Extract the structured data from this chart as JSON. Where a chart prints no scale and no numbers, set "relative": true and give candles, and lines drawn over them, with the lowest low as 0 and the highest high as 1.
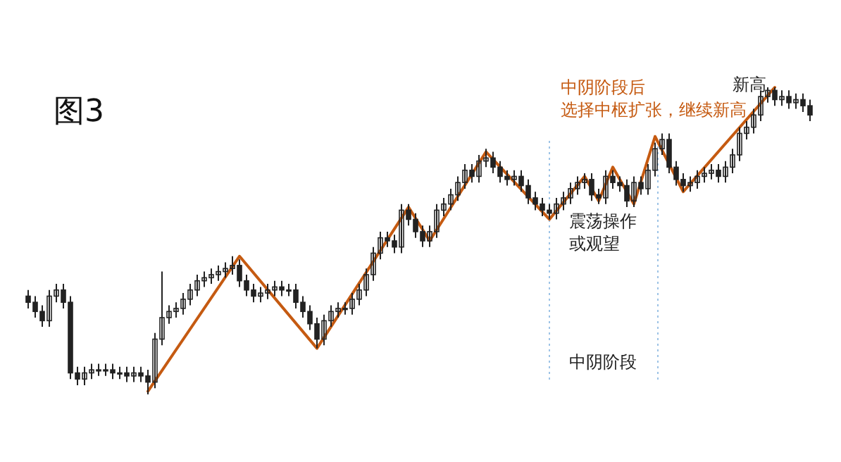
{
  "chart_data": {
    "type": "candlestick",
    "title": "图3",
    "relative": true,
    "categories": [
      null,
      null,
      null,
      null,
      null,
      null,
      null,
      null,
      null,
      null,
      null,
      null,
      null,
      null,
      null,
      null,
      null,
      null,
      null,
      null,
      null,
      null,
      null,
      null,
      null,
      null,
      null,
      null,
      null,
      null,
      null,
      null,
      null,
      null,
      null,
      null,
      null,
      null,
      null,
      null,
      null,
      null,
      null,
      null,
      null,
      null,
      null,
      null,
      null,
      null,
      null,
      null,
      null,
      null,
      null,
      null,
      null,
      null,
      null,
      null,
      null,
      null,
      null,
      null,
      null,
      null,
      null,
      null,
      null,
      null,
      null,
      null,
      null,
      null,
      null,
      null,
      null,
      null,
      null,
      null,
      null,
      null,
      null,
      null,
      null,
      null,
      null,
      null,
      null,
      null,
      null,
      null,
      null,
      null,
      null,
      null,
      null,
      null,
      null,
      null,
      null,
      null,
      null,
      null,
      null,
      null,
      null,
      null,
      null,
      null,
      null,
      null
    ],
    "ohlc": [
      [
        0.32,
        0.34,
        0.28,
        0.3
      ],
      [
        0.3,
        0.32,
        0.25,
        0.27
      ],
      [
        0.27,
        0.29,
        0.22,
        0.24
      ],
      [
        0.24,
        0.34,
        0.22,
        0.32
      ],
      [
        0.32,
        0.36,
        0.3,
        0.34
      ],
      [
        0.34,
        0.36,
        0.28,
        0.3
      ],
      [
        0.3,
        0.32,
        0.05,
        0.07
      ],
      [
        0.07,
        0.09,
        0.03,
        0.05
      ],
      [
        0.05,
        0.09,
        0.03,
        0.07
      ],
      [
        0.07,
        0.1,
        0.05,
        0.08
      ],
      [
        0.08,
        0.1,
        0.06,
        0.08
      ],
      [
        0.08,
        0.1,
        0.06,
        0.08
      ],
      [
        0.08,
        0.1,
        0.05,
        0.07
      ],
      [
        0.07,
        0.09,
        0.05,
        0.07
      ],
      [
        0.07,
        0.09,
        0.04,
        0.06
      ],
      [
        0.06,
        0.09,
        0.04,
        0.07
      ],
      [
        0.07,
        0.09,
        0.04,
        0.06
      ],
      [
        0.06,
        0.08,
        0.0,
        0.04
      ],
      [
        0.04,
        0.2,
        0.02,
        0.18
      ],
      [
        0.18,
        0.4,
        0.16,
        0.25
      ],
      [
        0.25,
        0.29,
        0.23,
        0.27
      ],
      [
        0.27,
        0.3,
        0.25,
        0.28
      ],
      [
        0.28,
        0.33,
        0.26,
        0.31
      ],
      [
        0.31,
        0.36,
        0.29,
        0.34
      ],
      [
        0.34,
        0.39,
        0.32,
        0.37
      ],
      [
        0.37,
        0.4,
        0.35,
        0.38
      ],
      [
        0.38,
        0.41,
        0.36,
        0.39
      ],
      [
        0.39,
        0.42,
        0.37,
        0.4
      ],
      [
        0.4,
        0.43,
        0.38,
        0.41
      ],
      [
        0.41,
        0.45,
        0.39,
        0.42
      ],
      [
        0.42,
        0.44,
        0.35,
        0.37
      ],
      [
        0.37,
        0.39,
        0.32,
        0.34
      ],
      [
        0.34,
        0.36,
        0.3,
        0.32
      ],
      [
        0.32,
        0.35,
        0.3,
        0.33
      ],
      [
        0.33,
        0.36,
        0.31,
        0.34
      ],
      [
        0.34,
        0.37,
        0.32,
        0.35
      ],
      [
        0.35,
        0.37,
        0.32,
        0.34
      ],
      [
        0.34,
        0.36,
        0.32,
        0.34
      ],
      [
        0.34,
        0.36,
        0.28,
        0.3
      ],
      [
        0.3,
        0.32,
        0.25,
        0.27
      ],
      [
        0.27,
        0.29,
        0.21,
        0.23
      ],
      [
        0.23,
        0.25,
        0.15,
        0.18
      ],
      [
        0.18,
        0.26,
        0.16,
        0.24
      ],
      [
        0.24,
        0.29,
        0.22,
        0.27
      ],
      [
        0.27,
        0.3,
        0.25,
        0.28
      ],
      [
        0.28,
        0.3,
        0.26,
        0.28
      ],
      [
        0.28,
        0.33,
        0.26,
        0.31
      ],
      [
        0.31,
        0.36,
        0.29,
        0.34
      ],
      [
        0.34,
        0.41,
        0.32,
        0.39
      ],
      [
        0.39,
        0.48,
        0.37,
        0.46
      ],
      [
        0.46,
        0.53,
        0.44,
        0.51
      ],
      [
        0.51,
        0.53,
        0.48,
        0.5
      ],
      [
        0.5,
        0.52,
        0.46,
        0.48
      ],
      [
        0.48,
        0.62,
        0.46,
        0.6
      ],
      [
        0.6,
        0.62,
        0.55,
        0.57
      ],
      [
        0.57,
        0.59,
        0.51,
        0.53
      ],
      [
        0.53,
        0.55,
        0.48,
        0.5
      ],
      [
        0.5,
        0.55,
        0.48,
        0.53
      ],
      [
        0.53,
        0.62,
        0.51,
        0.6
      ],
      [
        0.6,
        0.64,
        0.58,
        0.62
      ],
      [
        0.62,
        0.67,
        0.6,
        0.65
      ],
      [
        0.65,
        0.71,
        0.63,
        0.69
      ],
      [
        0.69,
        0.75,
        0.67,
        0.73
      ],
      [
        0.73,
        0.75,
        0.69,
        0.71
      ],
      [
        0.71,
        0.78,
        0.69,
        0.76
      ],
      [
        0.76,
        0.8,
        0.74,
        0.77
      ],
      [
        0.77,
        0.79,
        0.72,
        0.74
      ],
      [
        0.74,
        0.76,
        0.69,
        0.71
      ],
      [
        0.71,
        0.73,
        0.68,
        0.7
      ],
      [
        0.7,
        0.73,
        0.68,
        0.71
      ],
      [
        0.71,
        0.73,
        0.66,
        0.68
      ],
      [
        0.68,
        0.7,
        0.62,
        0.64
      ],
      [
        0.64,
        0.66,
        0.6,
        0.62
      ],
      [
        0.62,
        0.64,
        0.58,
        0.6
      ],
      [
        0.6,
        0.62,
        0.57,
        0.59
      ],
      [
        0.59,
        0.64,
        0.57,
        0.62
      ],
      [
        0.62,
        0.66,
        0.6,
        0.64
      ],
      [
        0.64,
        0.69,
        0.62,
        0.67
      ],
      [
        0.67,
        0.71,
        0.65,
        0.69
      ],
      [
        0.69,
        0.72,
        0.67,
        0.7
      ],
      [
        0.7,
        0.72,
        0.63,
        0.65
      ],
      [
        0.65,
        0.67,
        0.62,
        0.64
      ],
      [
        0.64,
        0.73,
        0.62,
        0.71
      ],
      [
        0.71,
        0.73,
        0.67,
        0.69
      ],
      [
        0.69,
        0.71,
        0.66,
        0.68
      ],
      [
        0.68,
        0.7,
        0.61,
        0.63
      ],
      [
        0.63,
        0.71,
        0.61,
        0.69
      ],
      [
        0.69,
        0.71,
        0.65,
        0.67
      ],
      [
        0.67,
        0.75,
        0.65,
        0.73
      ],
      [
        0.73,
        0.82,
        0.71,
        0.8
      ],
      [
        0.8,
        0.85,
        0.78,
        0.83
      ],
      [
        0.83,
        0.85,
        0.72,
        0.74
      ],
      [
        0.74,
        0.76,
        0.68,
        0.7
      ],
      [
        0.7,
        0.72,
        0.66,
        0.68
      ],
      [
        0.68,
        0.71,
        0.66,
        0.69
      ],
      [
        0.69,
        0.73,
        0.67,
        0.71
      ],
      [
        0.71,
        0.74,
        0.69,
        0.72
      ],
      [
        0.72,
        0.75,
        0.7,
        0.73
      ],
      [
        0.73,
        0.75,
        0.69,
        0.71
      ],
      [
        0.71,
        0.76,
        0.69,
        0.74
      ],
      [
        0.74,
        0.8,
        0.72,
        0.78
      ],
      [
        0.78,
        0.87,
        0.76,
        0.85
      ],
      [
        0.85,
        0.89,
        0.83,
        0.87
      ],
      [
        0.87,
        0.93,
        0.85,
        0.91
      ],
      [
        0.91,
        0.99,
        0.89,
        0.97
      ],
      [
        0.97,
        1.0,
        0.95,
        0.99
      ],
      [
        0.99,
        1.0,
        0.94,
        0.96
      ],
      [
        0.96,
        0.99,
        0.94,
        0.97
      ],
      [
        0.97,
        0.99,
        0.93,
        0.95
      ],
      [
        0.95,
        0.98,
        0.93,
        0.96
      ],
      [
        0.96,
        0.98,
        0.92,
        0.94
      ],
      [
        0.94,
        0.96,
        0.89,
        0.91
      ]
    ],
    "color": "#222222",
    "series": [
      {
        "type": "line",
        "color": "#c55a11",
        "line_style": "solid",
        "marker": "none",
        "values": [
          null,
          null,
          null,
          null,
          null,
          null,
          null,
          null,
          null,
          null,
          null,
          null,
          null,
          null,
          null,
          null,
          null,
          0.01,
          null,
          null,
          null,
          null,
          null,
          null,
          null,
          null,
          null,
          null,
          null,
          null,
          0.45,
          null,
          null,
          null,
          null,
          null,
          null,
          null,
          null,
          null,
          null,
          0.15,
          null,
          null,
          null,
          null,
          null,
          null,
          null,
          null,
          null,
          null,
          null,
          null,
          0.61,
          null,
          null,
          0.5,
          null,
          null,
          null,
          null,
          null,
          null,
          null,
          0.79,
          null,
          null,
          null,
          null,
          null,
          null,
          null,
          null,
          0.57,
          null,
          null,
          null,
          null,
          0.71,
          null,
          0.63,
          null,
          0.74,
          null,
          null,
          0.62,
          null,
          null,
          0.84,
          null,
          null,
          null,
          0.66,
          null,
          null,
          null,
          null,
          null,
          null,
          null,
          null,
          null,
          null,
          null,
          null,
          1.0,
          null,
          null,
          null,
          null,
          null
        ]
      }
    ],
    "annotations": [
      "中阴阶段后选择中枢扩张，继续新高",
      "新高",
      "震荡操作或观望",
      "中阴阶段"
    ]
  }
}
